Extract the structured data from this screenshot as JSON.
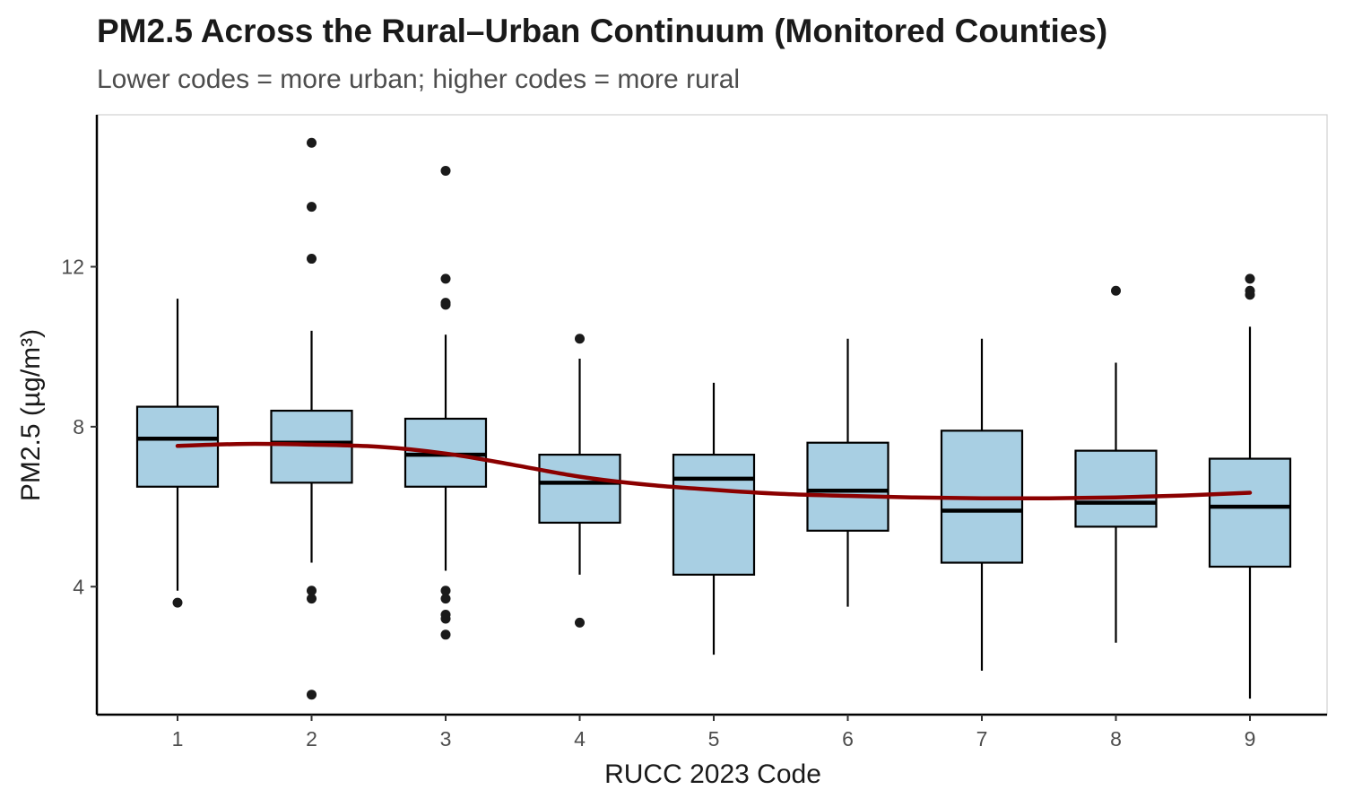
{
  "chart_data": {
    "type": "box",
    "title": "PM2.5 Across the Rural–Urban Continuum (Monitored Counties)",
    "subtitle": "Lower codes = more urban; higher codes = more rural",
    "xlabel": "RUCC 2023 Code",
    "ylabel": "PM2.5 (µg/m³)",
    "categories": [
      "1",
      "2",
      "3",
      "4",
      "5",
      "6",
      "7",
      "8",
      "9"
    ],
    "ylim": [
      0.8,
      15.8
    ],
    "yticks": [
      4,
      8,
      12
    ],
    "grid": false,
    "colors": {
      "box_fill": "#a8cfe3",
      "box_stroke": "#000000",
      "trend": "#8b0000",
      "outlier": "#1a1a1a"
    },
    "boxes": [
      {
        "category": "1",
        "whisker_low": 3.9,
        "q1": 6.5,
        "median": 7.7,
        "q3": 8.5,
        "whisker_high": 11.2,
        "outliers": [
          3.6
        ]
      },
      {
        "category": "2",
        "whisker_low": 4.6,
        "q1": 6.6,
        "median": 7.6,
        "q3": 8.4,
        "whisker_high": 10.4,
        "outliers": [
          15.1,
          13.5,
          12.2,
          3.9,
          3.7,
          1.3
        ]
      },
      {
        "category": "3",
        "whisker_low": 4.4,
        "q1": 6.5,
        "median": 7.3,
        "q3": 8.2,
        "whisker_high": 10.3,
        "outliers": [
          14.4,
          11.7,
          11.1,
          11.05,
          3.9,
          3.7,
          3.3,
          3.2,
          2.8
        ]
      },
      {
        "category": "4",
        "whisker_low": 4.3,
        "q1": 5.6,
        "median": 6.6,
        "q3": 7.3,
        "whisker_high": 9.7,
        "outliers": [
          10.2,
          3.1
        ]
      },
      {
        "category": "5",
        "whisker_low": 2.3,
        "q1": 4.3,
        "median": 6.7,
        "q3": 7.3,
        "whisker_high": 9.1,
        "outliers": []
      },
      {
        "category": "6",
        "whisker_low": 3.5,
        "q1": 5.4,
        "median": 6.4,
        "q3": 7.6,
        "whisker_high": 10.2,
        "outliers": []
      },
      {
        "category": "7",
        "whisker_low": 1.9,
        "q1": 4.6,
        "median": 5.9,
        "q3": 7.9,
        "whisker_high": 10.2,
        "outliers": []
      },
      {
        "category": "8",
        "whisker_low": 2.6,
        "q1": 5.5,
        "median": 6.1,
        "q3": 7.4,
        "whisker_high": 9.6,
        "outliers": [
          11.4
        ]
      },
      {
        "category": "9",
        "whisker_low": 1.2,
        "q1": 4.5,
        "median": 6.0,
        "q3": 7.2,
        "whisker_high": 10.5,
        "outliers": [
          11.7,
          11.4,
          11.3
        ]
      }
    ],
    "trend_line": {
      "x": [
        1,
        1.5,
        2,
        2.5,
        3,
        3.5,
        4,
        4.5,
        5,
        5.5,
        6,
        6.5,
        7,
        7.5,
        8,
        8.5,
        9
      ],
      "y": [
        7.52,
        7.57,
        7.55,
        7.5,
        7.33,
        7.05,
        6.75,
        6.55,
        6.42,
        6.32,
        6.27,
        6.23,
        6.21,
        6.21,
        6.23,
        6.28,
        6.35
      ]
    }
  }
}
